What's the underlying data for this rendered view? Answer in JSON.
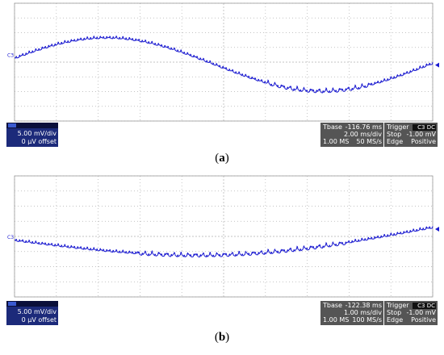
{
  "panels": [
    {
      "channel": "C3",
      "volts_div": "5.00 mV/div",
      "offset": "0 µV offset",
      "tbase_label": "Tbase",
      "tbase": "-116.76 ms",
      "time_div": "2.00 ms/div",
      "samples": "1.00 MS",
      "rate": "50 MS/s",
      "trigger_label": "Trigger",
      "trigger_ch": "C3 DC",
      "mode": "Stop",
      "level": "-1.00 mV",
      "type": "Edge",
      "slope": "Positive",
      "caption_letter": "a"
    },
    {
      "channel": "C3",
      "volts_div": "5.00 mV/div",
      "offset": "0 µV offset",
      "tbase_label": "Tbase",
      "tbase": "-122.38 ms",
      "time_div": "1.00 ms/div",
      "samples": "1.00 MS",
      "rate": "100 MS/s",
      "trigger_label": "Trigger",
      "trigger_ch": "C3 DC",
      "mode": "Stop",
      "level": "-1.00 mV",
      "type": "Edge",
      "slope": "Positive",
      "caption_letter": "b"
    }
  ]
}
